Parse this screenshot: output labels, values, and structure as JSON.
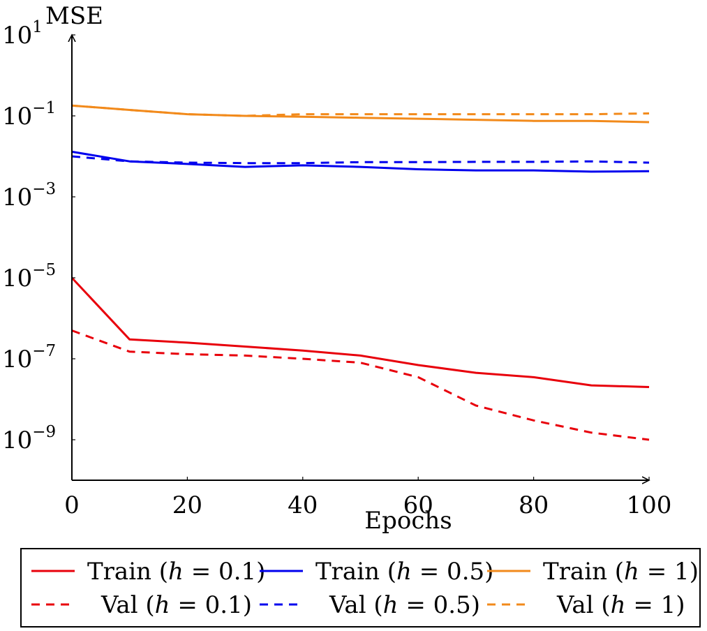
{
  "chart_data": {
    "type": "line",
    "xlabel": "Epochs",
    "ylabel": "MSE",
    "xlim": [
      0,
      100
    ],
    "ylim": [
      1e-10,
      10
    ],
    "yscale": "log",
    "grid": false,
    "x_ticks": [
      "0",
      "20",
      "40",
      "60",
      "80",
      "100"
    ],
    "y_ticks": [
      {
        "base": "10",
        "exp": "1"
      },
      {
        "base": "10",
        "exp": "−1"
      },
      {
        "base": "10",
        "exp": "−3"
      },
      {
        "base": "10",
        "exp": "−5"
      },
      {
        "base": "10",
        "exp": "−7"
      },
      {
        "base": "10",
        "exp": "−9"
      }
    ],
    "x": [
      0,
      10,
      20,
      30,
      40,
      50,
      60,
      70,
      80,
      90,
      100
    ],
    "series": [
      {
        "name": "Train (h = 0.1)",
        "color": "#e8000b",
        "style": "solid",
        "values": [
          1e-05,
          3e-07,
          2.5e-07,
          2e-07,
          1.6e-07,
          1.2e-07,
          7e-08,
          4.5e-08,
          3.5e-08,
          2.2e-08,
          2e-08
        ]
      },
      {
        "name": "Train (h = 0.5)",
        "color": "#0000ee",
        "style": "solid",
        "values": [
          0.013,
          0.0075,
          0.0065,
          0.0055,
          0.006,
          0.0055,
          0.0048,
          0.0045,
          0.0045,
          0.0042,
          0.0043
        ]
      },
      {
        "name": "Train (h = 1)",
        "color": "#f28a1b",
        "style": "solid",
        "values": [
          0.18,
          0.14,
          0.11,
          0.1,
          0.095,
          0.09,
          0.085,
          0.08,
          0.075,
          0.075,
          0.07
        ]
      },
      {
        "name": "Val (h = 0.1)",
        "color": "#e8000b",
        "style": "dashed",
        "values": [
          5e-07,
          1.5e-07,
          1.3e-07,
          1.2e-07,
          1e-07,
          8e-08,
          3.5e-08,
          7e-09,
          3e-09,
          1.5e-09,
          1e-09
        ]
      },
      {
        "name": "Val (h = 0.5)",
        "color": "#0000ee",
        "style": "dashed",
        "values": [
          0.01,
          0.0075,
          0.007,
          0.0068,
          0.0068,
          0.0072,
          0.0072,
          0.0073,
          0.0073,
          0.0075,
          0.007
        ]
      },
      {
        "name": "Val (h = 1)",
        "color": "#f28a1b",
        "style": "dashed",
        "values": [
          0.18,
          0.14,
          0.11,
          0.1,
          0.11,
          0.11,
          0.11,
          0.11,
          0.11,
          0.11,
          0.115
        ]
      }
    ],
    "legend": {
      "placement": "bottom",
      "rows": [
        [
          {
            "label": "Train (",
            "var": "h",
            "rest": " = 0.1)",
            "series": 0
          },
          {
            "label": "Train (",
            "var": "h",
            "rest": " = 0.5)",
            "series": 1
          },
          {
            "label": "Train (",
            "var": "h",
            "rest": " = 1)",
            "series": 2
          }
        ],
        [
          {
            "label": "Val (",
            "var": "h",
            "rest": " = 0.1)",
            "series": 3
          },
          {
            "label": "Val (",
            "var": "h",
            "rest": " = 0.5)",
            "series": 4
          },
          {
            "label": "Val (",
            "var": "h",
            "rest": " = 1)",
            "series": 5
          }
        ]
      ]
    }
  }
}
